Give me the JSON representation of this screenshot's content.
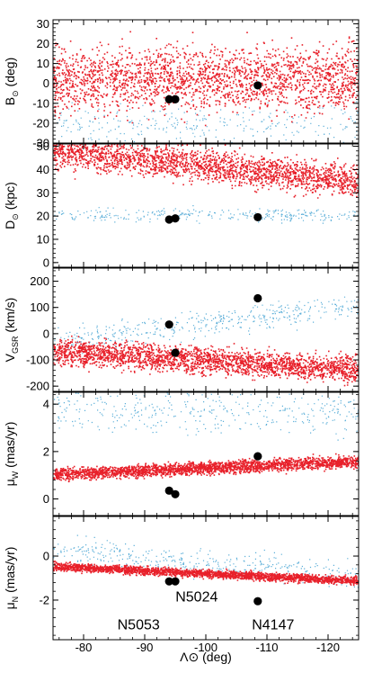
{
  "chart_data": {
    "type": "scatter",
    "x_axis": {
      "label": "Λ⊙ (deg)",
      "range": [
        -75,
        -125
      ],
      "ticks": [
        -80,
        -90,
        -100,
        -110,
        -120
      ],
      "tick_labels": [
        "-80",
        "-90",
        "-100",
        "-110",
        "-120"
      ],
      "reversed": true
    },
    "colors": {
      "red_stream": "#e8202a",
      "blue_stream": "#5aaed8",
      "clusters": "#000000"
    },
    "panels": [
      {
        "ylabel_main": "B",
        "ylabel_sub": "⊙",
        "ylabel_unit": " (deg)",
        "ylim": [
          -30,
          32
        ],
        "yticks": [
          -30,
          -20,
          -10,
          0,
          10,
          20,
          30
        ],
        "ytick_labels": [
          "-30",
          "-20",
          "-10",
          "0",
          "10",
          "20",
          "30"
        ],
        "red_model": {
          "type": "const",
          "c": 2.5,
          "spread": 8
        },
        "blue_model": {
          "type": "const",
          "c": -20,
          "spread": 5
        },
        "red_count": 2200,
        "blue_count": 280,
        "clusters": [
          {
            "x": -94,
            "y": -8
          },
          {
            "x": -95,
            "y": -8
          },
          {
            "x": -108.5,
            "y": -1
          }
        ]
      },
      {
        "ylabel_main": "D",
        "ylabel_sub": "⊙",
        "ylabel_unit": " (kpc)",
        "ylim": [
          -2,
          51
        ],
        "yticks": [
          0,
          10,
          20,
          30,
          40,
          50
        ],
        "ytick_labels": [
          "0",
          "10",
          "20",
          "30",
          "40",
          "50"
        ],
        "red_model": {
          "type": "line",
          "a": 48.5,
          "b": -0.27,
          "spread": 3.5
        },
        "blue_model": {
          "type": "const",
          "c": 20.5,
          "spread": 1.5
        },
        "red_count": 2200,
        "blue_count": 300,
        "clusters": [
          {
            "x": -94,
            "y": 18.5
          },
          {
            "x": -95,
            "y": 19
          },
          {
            "x": -108.5,
            "y": 19.5
          }
        ]
      },
      {
        "ylabel_main": "V",
        "ylabel_sub": "GSR",
        "ylabel_unit": " (km/s)",
        "ylim": [
          -220,
          250
        ],
        "yticks": [
          -200,
          -100,
          0,
          100,
          200
        ],
        "ytick_labels": [
          "-200",
          "-100",
          "0",
          "100",
          "200"
        ],
        "red_model": {
          "type": "line",
          "a": -65,
          "b": -1.4,
          "spread": 24
        },
        "blue_model": {
          "type": "line",
          "a": -28,
          "b": 2.8,
          "spread": 22
        },
        "red_count": 2400,
        "blue_count": 420,
        "clusters": [
          {
            "x": -94,
            "y": 35
          },
          {
            "x": -95,
            "y": -73
          },
          {
            "x": -108.5,
            "y": 135
          }
        ]
      },
      {
        "ylabel_main": "μ",
        "ylabel_sub": "W",
        "ylabel_unit": " (mas/yr)",
        "ylim": [
          -0.7,
          4.5
        ],
        "yticks": [
          0,
          2,
          4
        ],
        "ytick_labels": [
          "0",
          "2",
          "4"
        ],
        "red_model": {
          "type": "line",
          "a": 1.05,
          "b": 0.011,
          "spread": 0.13
        },
        "blue_model": {
          "type": "const",
          "c": 3.7,
          "spread": 0.45
        },
        "red_count": 2400,
        "blue_count": 380,
        "clusters": [
          {
            "x": -94,
            "y": 0.35
          },
          {
            "x": -95,
            "y": 0.2
          },
          {
            "x": -108.5,
            "y": 1.8
          }
        ]
      },
      {
        "ylabel_main": "μ",
        "ylabel_sub": "N",
        "ylabel_unit": " (mas/yr)",
        "ylim": [
          -3.8,
          1.8
        ],
        "yticks": [
          -2,
          0
        ],
        "ytick_labels": [
          "-2",
          "0"
        ],
        "red_model": {
          "type": "line",
          "a": -0.45,
          "b": -0.013,
          "spread": 0.09
        },
        "blue_model": {
          "type": "line",
          "a": 0.3,
          "b": -0.022,
          "spread": 0.3
        },
        "red_count": 2400,
        "blue_count": 380,
        "clusters": [
          {
            "x": -94,
            "y": -1.15
          },
          {
            "x": -95,
            "y": -1.15
          },
          {
            "x": -108.5,
            "y": -2.05
          }
        ],
        "annotations": [
          {
            "text": "N5024",
            "x": -98.5,
            "y": -1.9
          },
          {
            "text": "N5053",
            "x": -89,
            "y": -3.15
          },
          {
            "text": "N4147",
            "x": -111,
            "y": -3.15
          }
        ]
      }
    ]
  }
}
